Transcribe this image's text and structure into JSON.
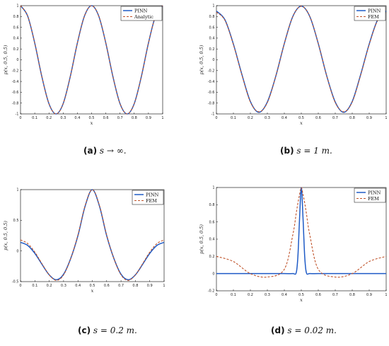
{
  "colors": {
    "pinn": "#1f5bc6",
    "ref": "#c0532a",
    "axis": "#000000"
  },
  "charts": [
    {
      "id": "a",
      "caption_tag": "(a)",
      "caption_text": "s → ∞.",
      "xlabel": "x",
      "ylabel": "p(x, 0.5, 0.5)",
      "xlim": [
        0,
        1
      ],
      "ylim": [
        -1,
        1
      ],
      "xticks": [
        "0",
        "0.1",
        "0.2",
        "0.3",
        "0.4",
        "0.5",
        "0.6",
        "0.7",
        "0.8",
        "0.9",
        "1"
      ],
      "yticks": [
        "1",
        "0.8",
        "0.6",
        "0.4",
        "0.2",
        "0",
        "-0.2",
        "-0.4",
        "-0.6",
        "-0.8",
        "-1"
      ],
      "legend": {
        "pinn": "PINN",
        "ref": "Analytic"
      }
    },
    {
      "id": "b",
      "caption_tag": "(b)",
      "caption_text": "s = 1 m.",
      "xlabel": "x",
      "ylabel": "p(x, 0.5, 0.5)",
      "xlim": [
        0,
        1
      ],
      "ylim": [
        -1,
        1
      ],
      "xticks": [
        "0",
        "0.1",
        "0.2",
        "0.3",
        "0.4",
        "0.5",
        "0.6",
        "0.7",
        "0.8",
        "0.9",
        "1"
      ],
      "yticks": [
        "1",
        "0.8",
        "0.6",
        "0.4",
        "0.2",
        "0",
        "-0.2",
        "-0.4",
        "-0.6",
        "-0.8",
        "-1"
      ],
      "legend": {
        "pinn": "PINN",
        "ref": "FEM"
      }
    },
    {
      "id": "c",
      "caption_tag": "(c)",
      "caption_text": "s = 0.2 m.",
      "xlabel": "x",
      "ylabel": "p(x, 0.5, 0.5)",
      "xlim": [
        0,
        1
      ],
      "ylim": [
        -0.5,
        1
      ],
      "xticks": [
        "0",
        "0.1",
        "0.2",
        "0.3",
        "0.4",
        "0.5",
        "0.6",
        "0.7",
        "0.8",
        "0.9",
        "1"
      ],
      "yticks": [
        "1",
        "0.5",
        "0",
        "-0.5"
      ],
      "legend": {
        "pinn": "PINN",
        "ref": "FEM"
      }
    },
    {
      "id": "d",
      "caption_tag": "(d)",
      "caption_text": "s = 0.02 m.",
      "xlabel": "x",
      "ylabel": "p(x, 0.5, 0.5)",
      "xlim": [
        0,
        1
      ],
      "ylim": [
        -0.2,
        1
      ],
      "xticks": [
        "0",
        "0.1",
        "0.2",
        "0.3",
        "0.4",
        "0.5",
        "0.6",
        "0.7",
        "0.8",
        "0.9",
        "1"
      ],
      "yticks": [
        "1",
        "0.8",
        "0.6",
        "0.4",
        "0.2",
        "0",
        "-0.2"
      ],
      "legend": {
        "pinn": "PINN",
        "ref": "FEM"
      }
    }
  ],
  "chart_data": [
    {
      "type": "line",
      "x": [
        0,
        0.05,
        0.1,
        0.15,
        0.2,
        0.25,
        0.3,
        0.35,
        0.4,
        0.45,
        0.5,
        0.55,
        0.6,
        0.65,
        0.7,
        0.75,
        0.8,
        0.85,
        0.9,
        0.95,
        1
      ],
      "series": [
        {
          "name": "PINN",
          "values": [
            1,
            0.81,
            0.31,
            -0.31,
            -0.81,
            -1,
            -0.81,
            -0.31,
            0.31,
            0.81,
            1,
            0.81,
            0.31,
            -0.31,
            -0.81,
            -1,
            -0.81,
            -0.31,
            0.31,
            0.81,
            1
          ]
        },
        {
          "name": "Analytic",
          "values": [
            1,
            0.81,
            0.31,
            -0.31,
            -0.81,
            -1,
            -0.81,
            -0.31,
            0.31,
            0.81,
            1,
            0.81,
            0.31,
            -0.31,
            -0.81,
            -1,
            -0.81,
            -0.31,
            0.31,
            0.81,
            1
          ]
        }
      ],
      "xlabel": "x",
      "ylabel": "p(x, 0.5, 0.5)",
      "xlim": [
        0,
        1
      ],
      "ylim": [
        -1,
        1
      ],
      "legend": "top-right"
    },
    {
      "type": "line",
      "x": [
        0,
        0.05,
        0.1,
        0.15,
        0.2,
        0.25,
        0.3,
        0.35,
        0.4,
        0.45,
        0.5,
        0.55,
        0.6,
        0.65,
        0.7,
        0.75,
        0.8,
        0.85,
        0.9,
        0.95,
        1
      ],
      "series": [
        {
          "name": "PINN",
          "values": [
            0.9,
            0.74,
            0.29,
            -0.27,
            -0.77,
            -0.97,
            -0.78,
            -0.3,
            0.3,
            0.8,
            0.99,
            0.8,
            0.3,
            -0.3,
            -0.78,
            -0.97,
            -0.77,
            -0.27,
            0.29,
            0.74,
            0.9
          ]
        },
        {
          "name": "FEM",
          "values": [
            0.88,
            0.73,
            0.28,
            -0.28,
            -0.78,
            -0.96,
            -0.79,
            -0.3,
            0.3,
            0.8,
            0.99,
            0.8,
            0.3,
            -0.3,
            -0.79,
            -0.96,
            -0.78,
            -0.28,
            0.28,
            0.73,
            0.88
          ]
        }
      ],
      "xlabel": "x",
      "ylabel": "p(x, 0.5, 0.5)",
      "xlim": [
        0,
        1
      ],
      "ylim": [
        -1,
        1
      ],
      "legend": "top-right"
    },
    {
      "type": "line",
      "x": [
        0,
        0.05,
        0.1,
        0.15,
        0.2,
        0.25,
        0.3,
        0.35,
        0.4,
        0.45,
        0.5,
        0.55,
        0.6,
        0.65,
        0.7,
        0.75,
        0.8,
        0.85,
        0.9,
        0.95,
        1
      ],
      "series": [
        {
          "name": "PINN",
          "values": [
            0.14,
            0.09,
            -0.04,
            -0.22,
            -0.39,
            -0.47,
            -0.38,
            -0.12,
            0.25,
            0.73,
            1,
            0.73,
            0.25,
            -0.12,
            -0.38,
            -0.47,
            -0.39,
            -0.22,
            -0.04,
            0.09,
            0.14
          ]
        },
        {
          "name": "FEM",
          "values": [
            0.18,
            0.12,
            -0.02,
            -0.21,
            -0.39,
            -0.48,
            -0.39,
            -0.12,
            0.26,
            0.74,
            1,
            0.74,
            0.26,
            -0.12,
            -0.39,
            -0.48,
            -0.39,
            -0.21,
            -0.02,
            0.12,
            0.18
          ]
        }
      ],
      "xlabel": "x",
      "ylabel": "p(x, 0.5, 0.5)",
      "xlim": [
        0,
        1
      ],
      "ylim": [
        -0.5,
        1
      ],
      "legend": "top-right"
    },
    {
      "type": "line",
      "x": [
        0,
        0.1,
        0.2,
        0.3,
        0.4,
        0.45,
        0.47,
        0.48,
        0.49,
        0.5,
        0.51,
        0.52,
        0.53,
        0.55,
        0.6,
        0.7,
        0.8,
        0.9,
        1
      ],
      "series": [
        {
          "name": "PINN",
          "values": [
            0,
            0,
            0,
            0,
            0,
            0,
            0.01,
            0.2,
            0.65,
            1,
            0.65,
            0.2,
            0.01,
            0,
            0,
            0,
            0,
            0,
            0
          ]
        },
        {
          "name": "FEM",
          "values": [
            0.2,
            0.14,
            0,
            -0.04,
            0.05,
            0.45,
            0.7,
            0.82,
            0.92,
            1,
            0.92,
            0.82,
            0.7,
            0.45,
            0.05,
            -0.04,
            0,
            0.14,
            0.2
          ]
        }
      ],
      "xlabel": "x",
      "ylabel": "p(x, 0.5, 0.5)",
      "xlim": [
        0,
        1
      ],
      "ylim": [
        -0.2,
        1
      ],
      "legend": "top-right"
    }
  ]
}
